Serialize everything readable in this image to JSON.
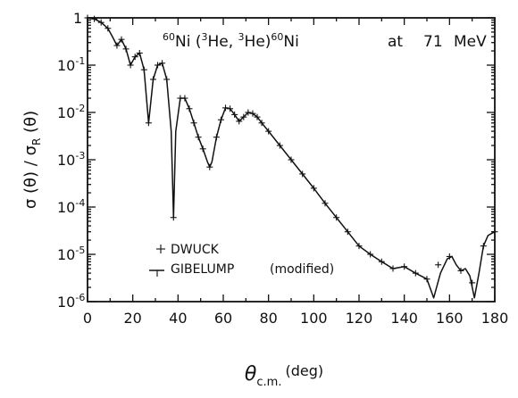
{
  "chart_data": {
    "type": "line",
    "title_parts": {
      "a_sup": "60",
      "a": "Ni (",
      "b_sup": "3",
      "b": "He, ",
      "c_sup": "3",
      "c": "He)",
      "d_sup": "60",
      "d": "Ni",
      "at": "at",
      "energy": "71",
      "unit": "MeV"
    },
    "xlabel": {
      "symbol": "θ",
      "sub": "c.m.",
      "unit": "(deg)"
    },
    "ylabel": {
      "text": "σ (θ) / σ",
      "sub": "R",
      "tail": " (θ)"
    },
    "xlim": [
      0,
      180
    ],
    "ylim": [
      1e-06,
      1
    ],
    "yscale": "log",
    "x_ticks": [
      "0",
      "20",
      "40",
      "60",
      "80",
      "100",
      "120",
      "140",
      "160",
      "180"
    ],
    "y_ticks": [
      {
        "base": "1",
        "exp": ""
      },
      {
        "base": "10",
        "exp": "-1"
      },
      {
        "base": "10",
        "exp": "-2"
      },
      {
        "base": "10",
        "exp": "-3"
      },
      {
        "base": "10",
        "exp": "-4"
      },
      {
        "base": "10",
        "exp": "-5"
      },
      {
        "base": "10",
        "exp": "-6"
      }
    ],
    "legend": {
      "position": "bottom-left",
      "entries": [
        {
          "marker": "plus",
          "label": "DWUCK"
        },
        {
          "marker": "line",
          "label": "GIBELUMP",
          "note": "(modified)"
        }
      ]
    },
    "series": [
      {
        "name": "GIBELUMP",
        "x": [
          0,
          3,
          6,
          9,
          11,
          13,
          15,
          17,
          19,
          21,
          23,
          25,
          27,
          29,
          31,
          33,
          35,
          37,
          38,
          39,
          41,
          43,
          45,
          47,
          49,
          51,
          53,
          54,
          55,
          57,
          59,
          61,
          63,
          65,
          67,
          69,
          71,
          73,
          75,
          77,
          80,
          85,
          90,
          95,
          100,
          105,
          110,
          115,
          120,
          125,
          130,
          135,
          140,
          145,
          150,
          153,
          156,
          159,
          161,
          163,
          165,
          167,
          169,
          171,
          173,
          175,
          177,
          180
        ],
        "y": [
          1.0,
          0.95,
          0.8,
          0.6,
          0.4,
          0.26,
          0.35,
          0.22,
          0.1,
          0.15,
          0.18,
          0.08,
          0.006,
          0.05,
          0.1,
          0.11,
          0.05,
          0.004,
          6e-05,
          0.004,
          0.02,
          0.02,
          0.012,
          0.006,
          0.003,
          0.0017,
          0.0009,
          0.0007,
          0.0009,
          0.003,
          0.007,
          0.0125,
          0.012,
          0.009,
          0.0065,
          0.008,
          0.01,
          0.0095,
          0.008,
          0.006,
          0.004,
          0.002,
          0.001,
          0.0005,
          0.00025,
          0.00012,
          6e-05,
          3e-05,
          1.5e-05,
          1e-05,
          7e-06,
          5e-06,
          5.5e-06,
          4e-06,
          3e-06,
          1.2e-06,
          4e-06,
          8e-06,
          9e-06,
          6e-06,
          4.5e-06,
          5e-06,
          3.5e-06,
          1.2e-06,
          4e-06,
          1.5e-05,
          2.5e-05,
          3e-05
        ]
      },
      {
        "name": "DWUCK",
        "marker": "plus",
        "x": [
          0,
          3,
          6,
          9,
          13,
          15,
          17,
          19,
          21,
          23,
          25,
          27,
          29,
          31,
          33,
          35,
          38,
          41,
          43,
          45,
          47,
          49,
          51,
          54,
          57,
          59,
          61,
          63,
          65,
          67,
          69,
          71,
          73,
          75,
          77,
          80,
          85,
          90,
          95,
          100,
          105,
          110,
          115,
          120,
          125,
          130,
          135,
          140,
          145,
          150,
          155,
          160,
          165,
          170,
          175,
          180
        ],
        "y": [
          1.0,
          0.95,
          0.8,
          0.6,
          0.26,
          0.35,
          0.22,
          0.1,
          0.15,
          0.18,
          0.08,
          0.006,
          0.05,
          0.1,
          0.11,
          0.05,
          6e-05,
          0.02,
          0.02,
          0.012,
          0.006,
          0.003,
          0.0017,
          0.0007,
          0.003,
          0.007,
          0.0125,
          0.012,
          0.009,
          0.0065,
          0.008,
          0.01,
          0.0095,
          0.008,
          0.006,
          0.004,
          0.002,
          0.001,
          0.0005,
          0.00025,
          0.00012,
          6e-05,
          3e-05,
          1.5e-05,
          1e-05,
          7e-06,
          5e-06,
          5.5e-06,
          4e-06,
          3e-06,
          6e-06,
          9e-06,
          4.5e-06,
          2.5e-06,
          1.5e-05,
          3e-05
        ]
      }
    ]
  }
}
